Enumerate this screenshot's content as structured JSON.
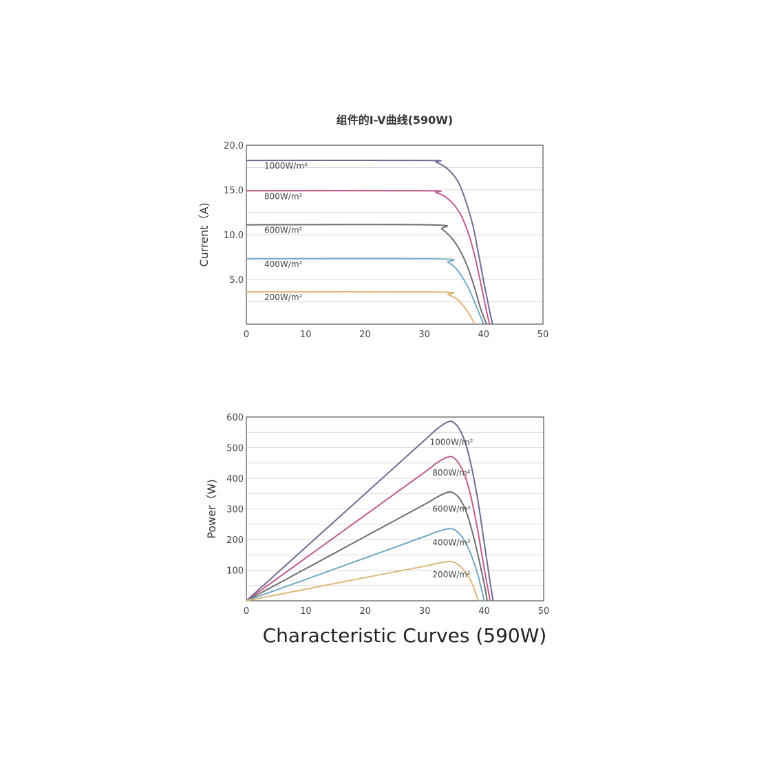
{
  "caption": "Characteristic Curves (590W)",
  "chart_data": [
    {
      "type": "line",
      "title": "组件的I-V曲线(590W)",
      "xlabel": "",
      "ylabel": "Current（A)",
      "xlim": [
        0,
        50
      ],
      "ylim": [
        0,
        20
      ],
      "xticks": [
        "0",
        "10",
        "20",
        "30",
        "40",
        "50"
      ],
      "yticks": [
        "5.0",
        "10.0",
        "15.0",
        "20.0"
      ],
      "ytick_values": [
        5,
        10,
        15,
        20
      ],
      "grid": true,
      "series": [
        {
          "name": "1000W/m²",
          "color": "#6e6a94",
          "x": [
            0,
            30,
            32,
            34,
            36,
            38,
            39,
            40,
            41,
            41.5
          ],
          "y": [
            18.3,
            18.3,
            18.1,
            17.3,
            15.5,
            11.5,
            8.3,
            4.8,
            1.5,
            0
          ]
        },
        {
          "name": "800W/m²",
          "color": "#c05b8e",
          "x": [
            0,
            30,
            32,
            34,
            36,
            37.5,
            38.5,
            39.5,
            40.5,
            41
          ],
          "y": [
            14.9,
            14.9,
            14.7,
            14.0,
            12.4,
            10.0,
            7.6,
            4.6,
            1.4,
            0
          ]
        },
        {
          "name": "600W/m²",
          "color": "#6f6f6f",
          "x": [
            0,
            31,
            33,
            35,
            36.5,
            37.5,
            38.5,
            39.5,
            40.5
          ],
          "y": [
            11.1,
            11.1,
            10.6,
            9.3,
            7.6,
            6.0,
            4.0,
            1.7,
            0
          ]
        },
        {
          "name": "400W/m²",
          "color": "#6fa9c3",
          "x": [
            0,
            32,
            34,
            35.5,
            37,
            38,
            39,
            40
          ],
          "y": [
            7.3,
            7.3,
            6.9,
            6.1,
            4.6,
            3.2,
            1.6,
            0
          ]
        },
        {
          "name": "200W/m²",
          "color": "#ddb77a",
          "x": [
            0,
            32,
            34,
            35.5,
            36.5,
            37.5,
            38.5
          ],
          "y": [
            3.6,
            3.6,
            3.3,
            2.8,
            2.1,
            1.2,
            0
          ]
        }
      ]
    },
    {
      "type": "line",
      "title": "",
      "xlabel": "",
      "ylabel": "Power（W)",
      "xlim": [
        0,
        50
      ],
      "ylim": [
        0,
        600
      ],
      "xticks": [
        "0",
        "10",
        "20",
        "30",
        "40",
        "50"
      ],
      "yticks": [
        "100",
        "200",
        "300",
        "400",
        "500",
        "600"
      ],
      "ytick_values": [
        100,
        200,
        300,
        400,
        500,
        600
      ],
      "grid": true,
      "series": [
        {
          "name": "1000W/m²",
          "color": "#6e6a94",
          "x": [
            0,
            10,
            20,
            30,
            32,
            34,
            35,
            36,
            37,
            38,
            39,
            40,
            41,
            41.5
          ],
          "y": [
            0,
            175,
            350,
            525,
            560,
            585,
            580,
            555,
            505,
            425,
            320,
            190,
            60,
            0
          ]
        },
        {
          "name": "800W/m²",
          "color": "#c05b8e",
          "x": [
            0,
            10,
            20,
            30,
            32,
            34,
            35,
            36,
            37,
            38,
            39,
            40,
            41
          ],
          "y": [
            0,
            140,
            280,
            420,
            450,
            470,
            465,
            440,
            395,
            320,
            220,
            105,
            0
          ]
        },
        {
          "name": "600W/m²",
          "color": "#6f6f6f",
          "x": [
            0,
            10,
            20,
            30,
            32,
            34,
            35,
            36,
            37,
            38,
            39,
            40,
            40.5
          ],
          "y": [
            0,
            105,
            210,
            315,
            338,
            355,
            350,
            330,
            290,
            225,
            145,
            55,
            0
          ]
        },
        {
          "name": "400W/m²",
          "color": "#6fa9c3",
          "x": [
            0,
            10,
            20,
            30,
            32,
            34,
            35,
            36,
            37,
            38,
            39,
            40
          ],
          "y": [
            0,
            70,
            140,
            210,
            225,
            235,
            232,
            215,
            185,
            140,
            80,
            0
          ]
        },
        {
          "name": "200W/m²",
          "color": "#ddb77a",
          "x": [
            0,
            10,
            20,
            30,
            32,
            34,
            35,
            36,
            37,
            38,
            39
          ],
          "y": [
            0,
            38,
            76,
            113,
            122,
            128,
            125,
            112,
            90,
            55,
            0
          ]
        }
      ]
    }
  ]
}
